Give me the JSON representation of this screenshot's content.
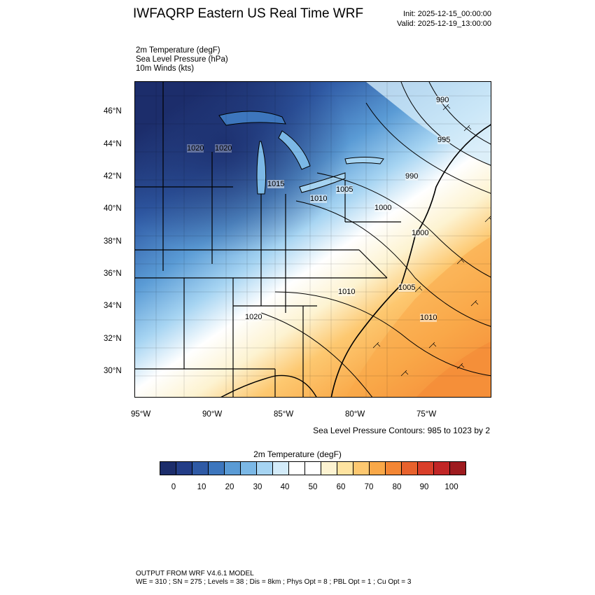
{
  "header": {
    "title": "IWFAQRP Eastern US Real Time WRF",
    "init": "Init: 2025-12-15_00:00:00",
    "valid": "Valid: 2025-12-19_13:00:00"
  },
  "variables": [
    "2m Temperature   (degF)",
    "Sea Level Pressure   (hPa)",
    "10m Winds   (kts)"
  ],
  "map": {
    "lat_ticks": [
      "46°N",
      "44°N",
      "42°N",
      "40°N",
      "38°N",
      "36°N",
      "34°N",
      "32°N",
      "30°N"
    ],
    "lon_ticks": [
      "95°W",
      "90°W",
      "85°W",
      "80°W",
      "75°W"
    ],
    "contour_labels": [
      "990",
      "995",
      "990",
      "1020",
      "1020",
      "1015",
      "1005",
      "1010",
      "1000",
      "1000",
      "1010",
      "1005",
      "1020",
      "1010"
    ]
  },
  "contour_note": "Sea Level Pressure Contours: 985 to 1023 by 2",
  "colorbar": {
    "title": "2m Temperature   (degF)",
    "labels": [
      "0",
      "10",
      "20",
      "30",
      "40",
      "50",
      "60",
      "70",
      "80",
      "90",
      "100"
    ],
    "colors": [
      "#1c2d6b",
      "#233d87",
      "#2f5aa5",
      "#3d76bd",
      "#5a9bd5",
      "#7bb8e6",
      "#a6d4f2",
      "#d3ebf9",
      "#ffffff",
      "#ffffff",
      "#fdf3d1",
      "#fee3a0",
      "#fdc870",
      "#f9a848",
      "#f38634",
      "#e8622d",
      "#d93f2a",
      "#c12626",
      "#9e1b1f"
    ]
  },
  "footer": {
    "line1": "OUTPUT FROM WRF V4.6.1 MODEL",
    "line2": "WE = 310 ; SN = 275 ; Levels = 38 ; Dis = 8km ; Phys Opt = 8 ; PBL Opt = 1 ; Cu Opt = 3"
  }
}
